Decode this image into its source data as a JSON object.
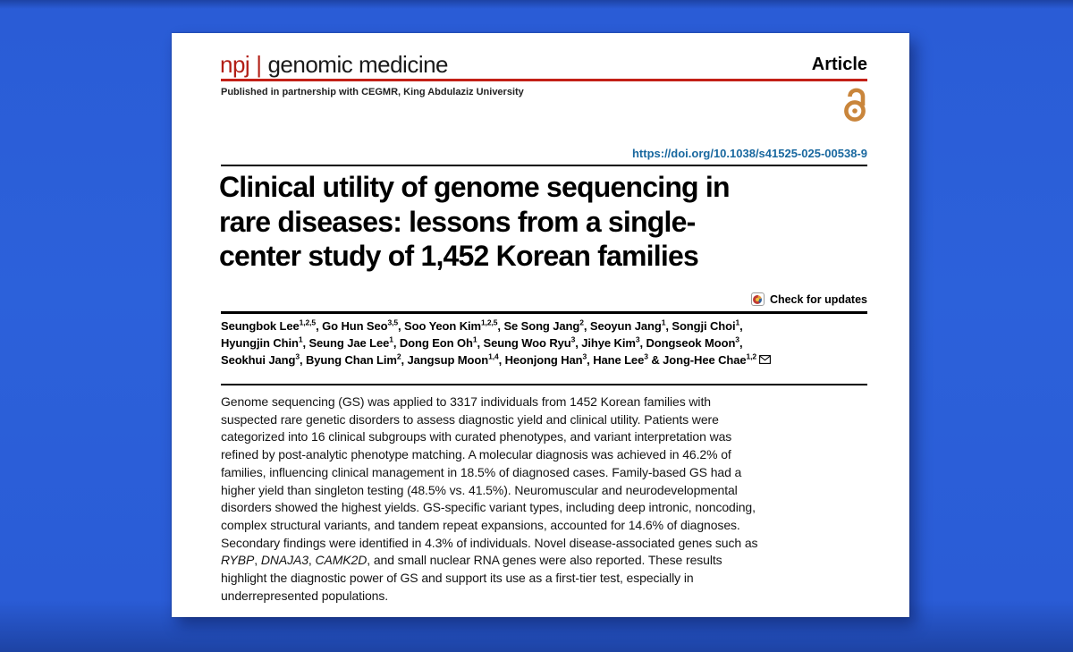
{
  "colors": {
    "background": "#2a5cd6",
    "accent_red": "#c32017",
    "brand_red": "#b21e15",
    "link_blue": "#19689f",
    "open_access_orange": "#c9853b",
    "text_black": "#111111"
  },
  "journal": {
    "brand": "npj",
    "separator": "|",
    "name": "genomic medicine",
    "article_type": "Article",
    "partnership": "Published in partnership with CEGMR, King Abdulaziz University",
    "open_access_icon": "open-padlock"
  },
  "doi": "https://doi.org/10.1038/s41525-025-00538-9",
  "title_lines": [
    "Clinical utility of genome sequencing in",
    "rare diseases: lessons from a single-",
    "center study of 1,452 Korean families"
  ],
  "check_for_updates": "Check for updates",
  "authors": {
    "lines": [
      [
        {
          "t": "Seungbok Lee",
          "s": "1,2,5"
        },
        {
          "t": ", Go Hun Seo",
          "s": "3,5"
        },
        {
          "t": ", Soo Yeon Kim",
          "s": "1,2,5"
        },
        {
          "t": ", Se Song Jang",
          "s": "2"
        },
        {
          "t": ", Seoyun Jang",
          "s": "1"
        },
        {
          "t": ", Songji Choi",
          "s": "1"
        },
        {
          "t": ","
        }
      ],
      [
        {
          "t": "Hyungjin Chin",
          "s": "1"
        },
        {
          "t": ", Seung Jae Lee",
          "s": "1"
        },
        {
          "t": ", Dong Eon Oh",
          "s": "1"
        },
        {
          "t": ", Seung Woo Ryu",
          "s": "3"
        },
        {
          "t": ", Jihye Kim",
          "s": "3"
        },
        {
          "t": ", Dongseok Moon",
          "s": "3"
        },
        {
          "t": ","
        }
      ],
      [
        {
          "t": "Seokhui Jang",
          "s": "3"
        },
        {
          "t": ", Byung Chan Lim",
          "s": "2"
        },
        {
          "t": ", Jangsup Moon",
          "s": "1,4"
        },
        {
          "t": ", Heonjong Han",
          "s": "3"
        },
        {
          "t": ", Hane Lee",
          "s": "3"
        },
        {
          "t": " & Jong-Hee Chae",
          "s": "1,2"
        },
        {
          "icon": "email"
        }
      ]
    ]
  },
  "abstract": {
    "lines": [
      [
        {
          "t": "Genome sequencing (GS) was applied to 3317 individuals from 1452 Korean families with"
        }
      ],
      [
        {
          "t": "suspected rare genetic disorders to assess diagnostic yield and clinical utility. Patients were"
        }
      ],
      [
        {
          "t": "categorized into 16 clinical subgroups with curated phenotypes, and variant interpretation was"
        }
      ],
      [
        {
          "t": "refined by post-analytic phenotype matching. A molecular diagnosis was achieved in 46.2% of"
        }
      ],
      [
        {
          "t": "families, influencing clinical management in 18.5% of diagnosed cases. Family-based GS had a"
        }
      ],
      [
        {
          "t": "higher yield than singleton testing (48.5% vs. 41.5%). Neuromuscular and neurodevelopmental"
        }
      ],
      [
        {
          "t": "disorders showed the highest yields. GS-specific variant types, including deep intronic, noncoding,"
        }
      ],
      [
        {
          "t": "complex structural variants, and tandem repeat expansions, accounted for 14.6% of diagnoses."
        }
      ],
      [
        {
          "t": "Secondary findings were identified in 4.3% of individuals. Novel disease-associated genes such as"
        }
      ],
      [
        {
          "t": "RYBP",
          "i": true
        },
        {
          "t": ", "
        },
        {
          "t": "DNAJA3",
          "i": true
        },
        {
          "t": ", "
        },
        {
          "t": "CAMK2D",
          "i": true
        },
        {
          "t": ", and small nuclear RNA genes were also reported. These results"
        }
      ],
      [
        {
          "t": "highlight the diagnostic power of GS and support its use as a first-tier test, especially in"
        }
      ],
      [
        {
          "t": "underrepresented populations."
        }
      ]
    ]
  }
}
